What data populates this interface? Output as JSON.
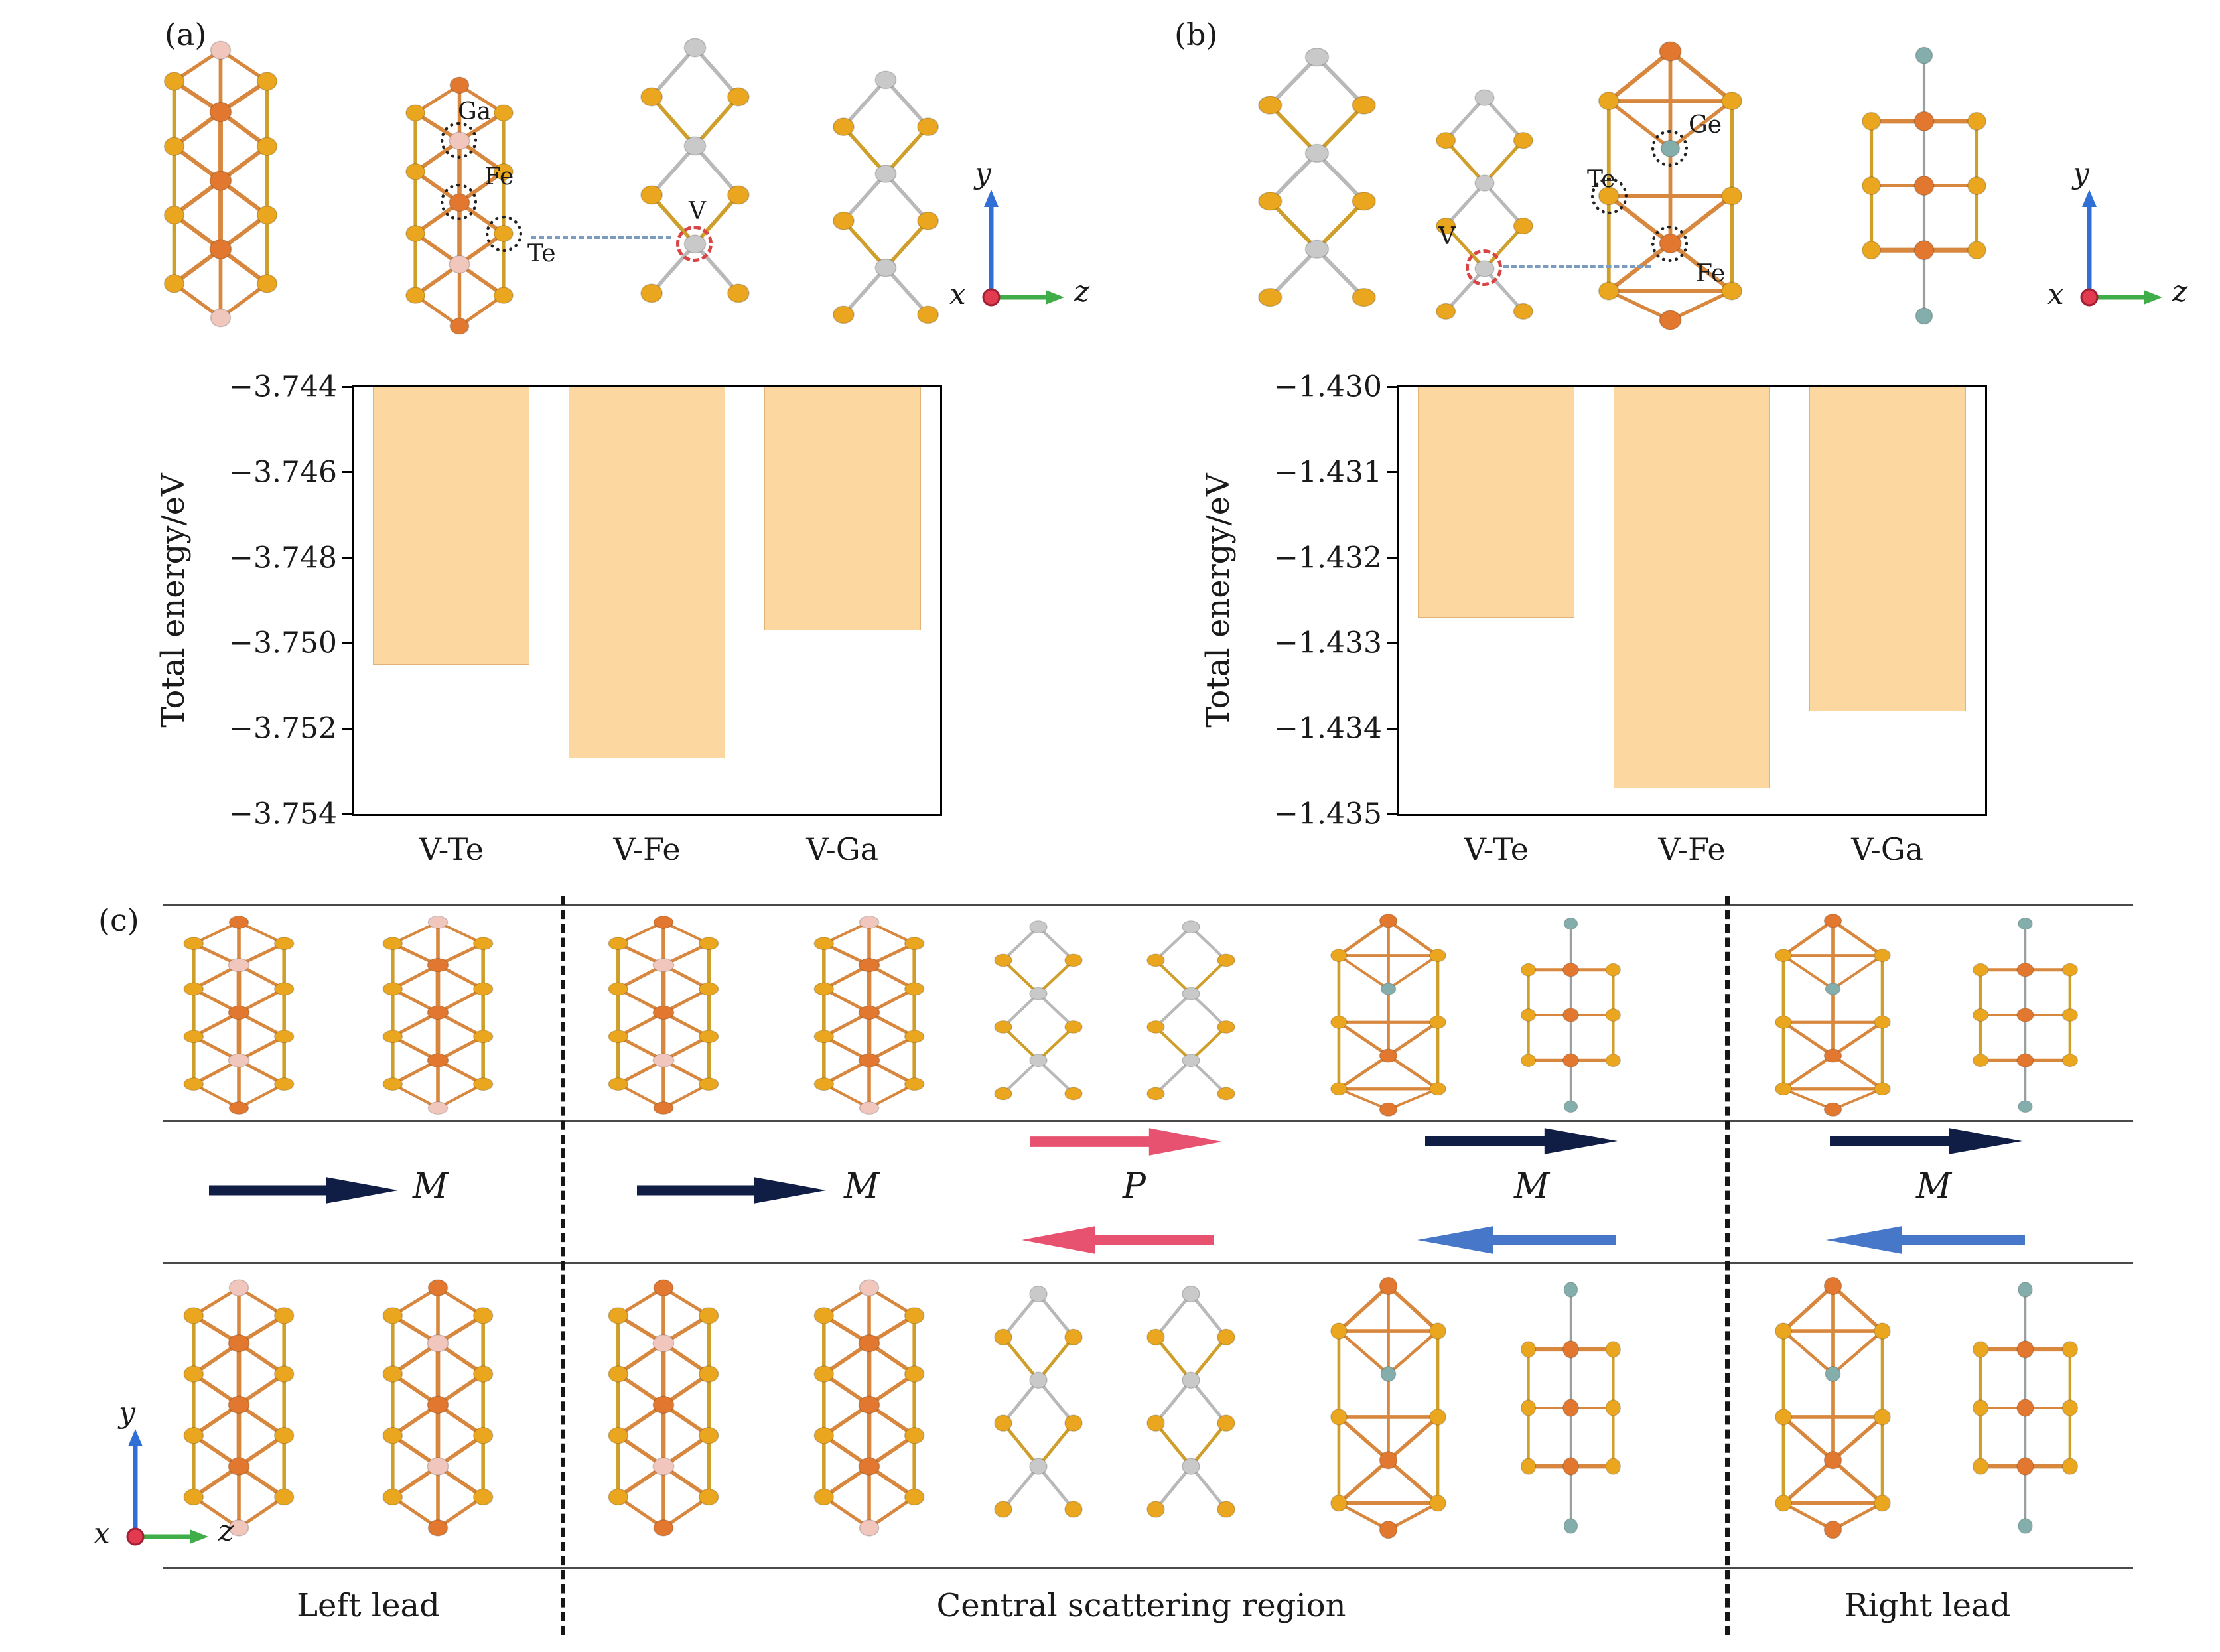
{
  "figure": {
    "panel_a_label": "(a)",
    "panel_b_label": "(b)",
    "panel_c_label": "(c)"
  },
  "panel_a": {
    "atom_labels": {
      "ga": "Ga",
      "fe": "Fe",
      "te": "Te",
      "v": "V"
    },
    "axis": {
      "x": "x",
      "y": "y",
      "z": "z"
    }
  },
  "panel_b": {
    "atom_labels": {
      "ge": "Ge",
      "te": "Te",
      "fe": "Fe",
      "v": "V"
    },
    "axis": {
      "x": "x",
      "y": "y",
      "z": "z"
    }
  },
  "panel_c": {
    "labels": {
      "left_lead": "Left lead",
      "central": "Central scattering region",
      "right_lead": "Right lead"
    },
    "arrow_labels": {
      "m1": "M",
      "m2": "M",
      "p": "P",
      "m3": "M",
      "m4": "M"
    },
    "axis": {
      "x": "x",
      "y": "y",
      "z": "z"
    }
  },
  "colors": {
    "bar_fill": "#fcd7a0",
    "arrow_navy": "#101d45",
    "arrow_red": "#e65270",
    "arrow_blue": "#4677c9",
    "axis_y": "#2f6fd6",
    "axis_z": "#3fae49",
    "axis_x_dot": "#e23b50",
    "atom_orange": "#e2782f",
    "atom_gold": "#eaa61e",
    "atom_silver": "#c9c9c9",
    "atom_pink": "#f0c6bd",
    "atom_teal": "#83aeac"
  },
  "chart_data": [
    {
      "type": "bar",
      "panel": "(a)",
      "categories": [
        "V-Te",
        "V-Fe",
        "V-Ga"
      ],
      "values": [
        -3.7505,
        -3.7527,
        -3.7497
      ],
      "title": "",
      "xlabel": "",
      "ylabel": "Total energy/eV",
      "ylim": [
        -3.754,
        -3.744
      ],
      "yticks": [
        -3.744,
        -3.746,
        -3.748,
        -3.75,
        -3.752,
        -3.754
      ],
      "ytick_labels": [
        "−3.744",
        "−3.746",
        "−3.748",
        "−3.750",
        "−3.752",
        "−3.754"
      ],
      "bar_color": "#fcd7a0",
      "grid": false,
      "bars_hang_from_top": true,
      "legend": "none"
    },
    {
      "type": "bar",
      "panel": "(b)",
      "categories": [
        "V-Te",
        "V-Fe",
        "V-Ga"
      ],
      "values": [
        -1.4327,
        -1.4347,
        -1.4338
      ],
      "title": "",
      "xlabel": "",
      "ylabel": "Total energy/eV",
      "ylim": [
        -1.435,
        -1.43
      ],
      "yticks": [
        -1.43,
        -1.431,
        -1.432,
        -1.433,
        -1.434,
        -1.435
      ],
      "ytick_labels": [
        "−1.430",
        "−1.431",
        "−1.432",
        "−1.433",
        "−1.434",
        "−1.435"
      ],
      "bar_color": "#fcd7a0",
      "grid": false,
      "bars_hang_from_top": true,
      "legend": "none"
    }
  ]
}
